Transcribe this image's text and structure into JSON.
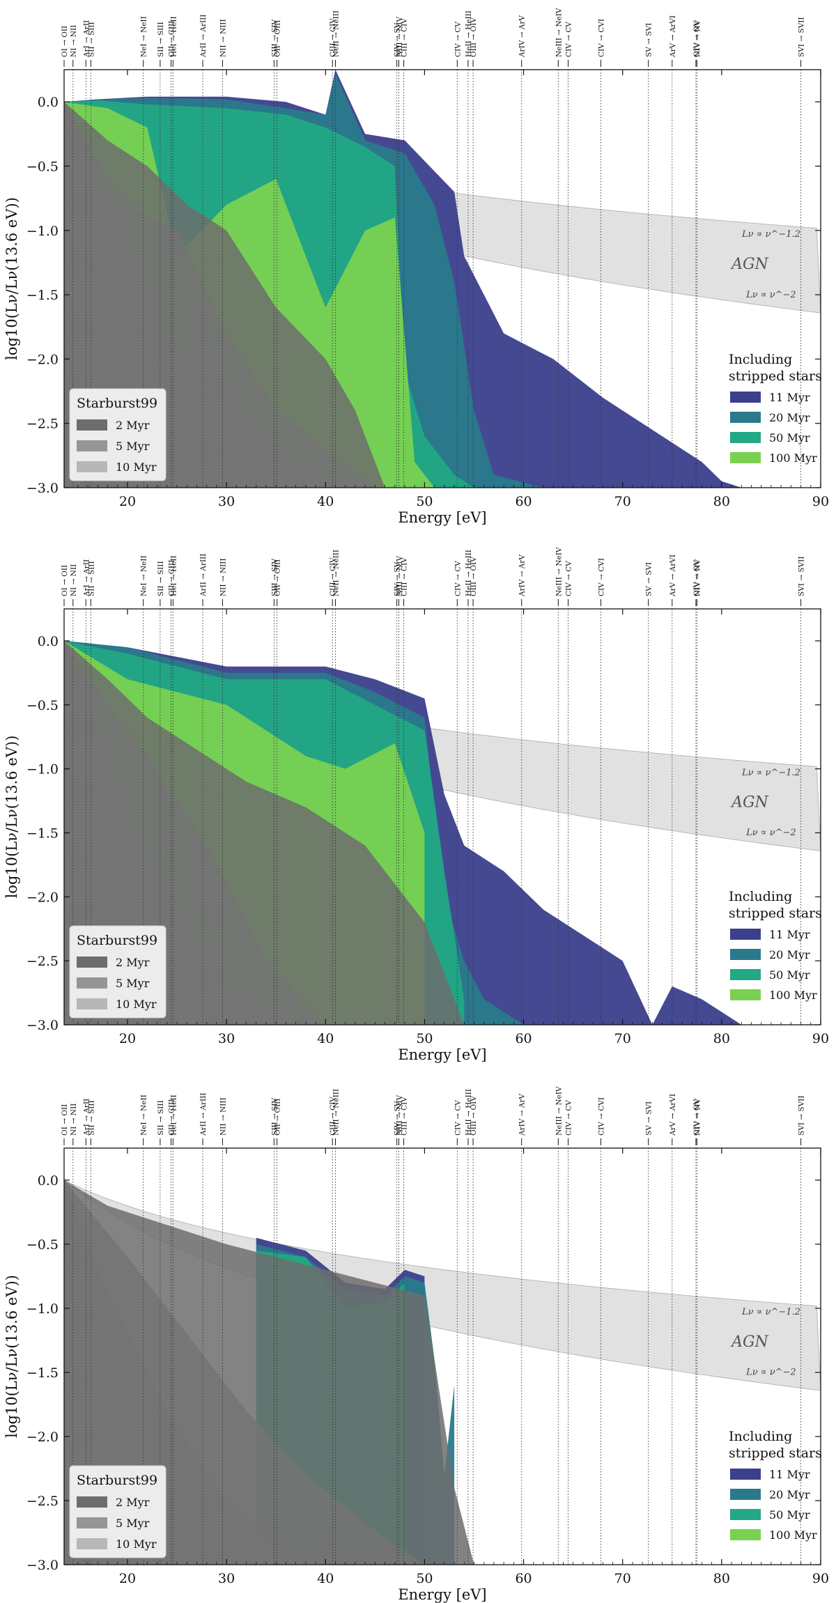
{
  "figure": {
    "xlabel": "Energy [eV]",
    "ylabel": "log10(Lν/Lν(13.6 eV))",
    "xticks": [
      "20",
      "30",
      "40",
      "50",
      "60",
      "70",
      "80",
      "90"
    ],
    "yticks": [
      "0.0",
      "−0.5",
      "−1.0",
      "−1.5",
      "−2.0",
      "−2.5",
      "−3.0"
    ],
    "agn_label": "AGN",
    "agn_law_upper": "Lν ∝ ν^−1.2",
    "agn_law_lower": "Lν ∝ ν^−2",
    "legend_starburst_title": "Starburst99",
    "legend_starburst": [
      "2 Myr",
      "5 Myr",
      "10 Myr"
    ],
    "legend_stripped_title_1": "Including",
    "legend_stripped_title_2": "stripped stars",
    "legend_stripped": [
      "11 Myr",
      "20 Myr",
      "50 Myr",
      "100 Myr"
    ]
  },
  "colors": {
    "sb_2": "#6d6d6d",
    "sb_5": "#959595",
    "sb_10": "#b7b7b7",
    "s_11": "#3b3f8c",
    "s_20": "#2a7a8c",
    "s_50": "#22a884",
    "s_100": "#7ad151",
    "agn": "#c8c8c8"
  },
  "ionization_lines": [
    {
      "label": "OI → OII",
      "energy": 13.6
    },
    {
      "label": "NI → NII",
      "energy": 14.5
    },
    {
      "label": "ArI → ArII",
      "energy": 15.8
    },
    {
      "label": "SII → SIII",
      "energy": 16.3
    },
    {
      "label": "NeI → NeII",
      "energy": 21.6
    },
    {
      "label": "SII → SIII",
      "energy": 23.3
    },
    {
      "label": "CII → CIII",
      "energy": 24.4
    },
    {
      "label": "HeI → HeII",
      "energy": 24.6
    },
    {
      "label": "ArII → ArIII",
      "energy": 27.6
    },
    {
      "label": "NII → NIII",
      "energy": 29.6
    },
    {
      "label": "SIII → SIV",
      "energy": 34.8
    },
    {
      "label": "OII → OIII",
      "energy": 35.1
    },
    {
      "label": "CIII → CIV",
      "energy": 40.7
    },
    {
      "label": "NeII → NeIII",
      "energy": 41.0
    },
    {
      "label": "SIV → SV",
      "energy": 47.2
    },
    {
      "label": "NIII → NIV",
      "energy": 47.4
    },
    {
      "label": "CIII → CIV",
      "energy": 47.9
    },
    {
      "label": "CIV → CV",
      "energy": 53.3
    },
    {
      "label": "HeII → HeIII",
      "energy": 54.4
    },
    {
      "label": "OIII → OIV",
      "energy": 54.9
    },
    {
      "label": "ArIV → ArV",
      "energy": 59.8
    },
    {
      "label": "NeIII → NeIV",
      "energy": 63.5
    },
    {
      "label": "CIV → CV",
      "energy": 64.5
    },
    {
      "label": "CIV → CVI",
      "energy": 67.8
    },
    {
      "label": "SV → SVI",
      "energy": 72.6
    },
    {
      "label": "ArV → ArVI",
      "energy": 75.0
    },
    {
      "label": "NIV → NV",
      "energy": 77.5
    },
    {
      "label": "OIV → OV",
      "energy": 77.4
    },
    {
      "label": "SVI → SVII",
      "energy": 88.0
    }
  ],
  "chart_data": [
    {
      "type": "area",
      "panel": 1,
      "xlim": [
        13.6,
        90
      ],
      "ylim": [
        -3.0,
        0.25
      ],
      "xlabel": "Energy [eV]",
      "ylabel": "log10(Lν/Lν(13.6 eV))",
      "agn": {
        "slope_upper": -1.2,
        "slope_lower": -2.0
      },
      "series": [
        {
          "name": "11 Myr",
          "color_key": "s_11",
          "x": [
            13.6,
            17,
            22,
            30,
            36,
            40,
            41,
            44,
            48,
            53,
            54,
            58,
            63,
            68,
            72,
            78,
            80,
            82
          ],
          "y": [
            0.0,
            0.02,
            0.04,
            0.04,
            0.0,
            -0.1,
            0.25,
            -0.25,
            -0.3,
            -0.7,
            -1.2,
            -1.8,
            -2.0,
            -2.3,
            -2.5,
            -2.8,
            -2.95,
            -3.0
          ]
        },
        {
          "name": "20 Myr",
          "color_key": "s_20",
          "x": [
            13.6,
            17,
            22,
            30,
            36,
            40,
            41,
            44,
            48,
            51,
            53,
            55,
            57,
            62
          ],
          "y": [
            0.0,
            0.02,
            0.03,
            0.02,
            -0.05,
            -0.1,
            0.22,
            -0.3,
            -0.4,
            -0.8,
            -1.4,
            -2.4,
            -2.9,
            -3.0
          ]
        },
        {
          "name": "50 Myr",
          "color_key": "s_50",
          "x": [
            13.6,
            17,
            22,
            30,
            36,
            40,
            44,
            47,
            48,
            50,
            53,
            55
          ],
          "y": [
            0.0,
            0.01,
            -0.02,
            -0.05,
            -0.1,
            -0.2,
            -0.35,
            -0.5,
            -2.1,
            -2.6,
            -2.9,
            -3.0
          ]
        },
        {
          "name": "100 Myr",
          "color_key": "s_100",
          "x": [
            13.6,
            18,
            22,
            25,
            30,
            35,
            40,
            44,
            47,
            49,
            51,
            52
          ],
          "y": [
            0.0,
            -0.05,
            -0.2,
            -1.2,
            -0.8,
            -0.6,
            -1.6,
            -1.0,
            -0.9,
            -2.8,
            -3.0,
            -3.0
          ]
        },
        {
          "name": "10 Myr",
          "color_key": "sb_10",
          "x": [
            13.6,
            20,
            24,
            30,
            35,
            40,
            45
          ],
          "y": [
            0.0,
            -1.2,
            -2.0,
            -2.3,
            -2.8,
            -3.0,
            -3.0
          ]
        },
        {
          "name": "5 Myr",
          "color_key": "sb_5",
          "x": [
            13.6,
            18,
            22,
            25,
            30,
            35,
            40,
            45,
            48
          ],
          "y": [
            0.0,
            -0.6,
            -0.9,
            -1.0,
            -1.8,
            -2.4,
            -2.7,
            -3.0,
            -3.0
          ]
        },
        {
          "name": "2 Myr",
          "color_key": "sb_2",
          "x": [
            13.6,
            18,
            22,
            26,
            30,
            35,
            40,
            43,
            46
          ],
          "y": [
            0.0,
            -0.3,
            -0.5,
            -0.8,
            -1.0,
            -1.6,
            -2.0,
            -2.4,
            -3.0
          ]
        }
      ]
    },
    {
      "type": "area",
      "panel": 2,
      "xlim": [
        13.6,
        90
      ],
      "ylim": [
        -3.0,
        0.25
      ],
      "xlabel": "Energy [eV]",
      "ylabel": "log10(Lν/Lν(13.6 eV))",
      "agn": {
        "slope_upper": -1.2,
        "slope_lower": -2.0
      },
      "series": [
        {
          "name": "11 Myr",
          "color_key": "s_11",
          "x": [
            13.6,
            20,
            30,
            40,
            45,
            50,
            52,
            54,
            58,
            62,
            66,
            70,
            73,
            75,
            78,
            80,
            82
          ],
          "y": [
            0.0,
            -0.05,
            -0.2,
            -0.2,
            -0.3,
            -0.45,
            -1.2,
            -1.6,
            -1.8,
            -2.1,
            -2.3,
            -2.5,
            -3.0,
            -2.7,
            -2.8,
            -2.9,
            -3.0
          ]
        },
        {
          "name": "20 Myr",
          "color_key": "s_20",
          "x": [
            13.6,
            20,
            30,
            40,
            45,
            50,
            52,
            54,
            56,
            60,
            62
          ],
          "y": [
            0.0,
            -0.05,
            -0.25,
            -0.25,
            -0.4,
            -0.6,
            -2.0,
            -2.5,
            -2.8,
            -3.0,
            -3.0
          ]
        },
        {
          "name": "50 Myr",
          "color_key": "s_50",
          "x": [
            13.6,
            20,
            30,
            40,
            45,
            50,
            52,
            54
          ],
          "y": [
            0.0,
            -0.1,
            -0.3,
            -0.3,
            -0.5,
            -0.7,
            -1.8,
            -2.8
          ]
        },
        {
          "name": "100 Myr",
          "color_key": "s_100",
          "x": [
            13.6,
            20,
            30,
            38,
            42,
            47,
            50
          ],
          "y": [
            0.0,
            -0.3,
            -0.5,
            -0.9,
            -1.0,
            -0.8,
            -1.5
          ]
        },
        {
          "name": "10 Myr",
          "color_key": "sb_10",
          "x": [
            13.6,
            20,
            26,
            30,
            36
          ],
          "y": [
            0.0,
            -1.5,
            -2.3,
            -2.8,
            -3.0
          ]
        },
        {
          "name": "5 Myr",
          "color_key": "sb_5",
          "x": [
            13.6,
            18,
            22,
            28,
            34,
            40
          ],
          "y": [
            0.0,
            -0.5,
            -0.9,
            -1.6,
            -2.5,
            -3.0
          ]
        },
        {
          "name": "2 Myr",
          "color_key": "sb_2",
          "x": [
            13.6,
            18,
            22,
            26,
            32,
            38,
            44,
            50,
            54
          ],
          "y": [
            0.0,
            -0.3,
            -0.6,
            -0.8,
            -1.1,
            -1.3,
            -1.6,
            -2.2,
            -3.0
          ]
        }
      ]
    },
    {
      "type": "area",
      "panel": 3,
      "xlim": [
        13.6,
        90
      ],
      "ylim": [
        -3.0,
        0.25
      ],
      "xlabel": "Energy [eV]",
      "ylabel": "log10(Lν/Lν(13.6 eV))",
      "agn": {
        "slope_upper": -1.2,
        "slope_lower": -2.0
      },
      "series": [
        {
          "name": "11 Myr",
          "color_key": "s_11",
          "x": [
            33,
            38,
            42,
            46,
            48,
            50
          ],
          "y": [
            -0.45,
            -0.55,
            -0.8,
            -0.85,
            -0.7,
            -0.75
          ]
        },
        {
          "name": "20 Myr",
          "color_key": "s_20",
          "x": [
            33,
            38,
            42,
            46,
            48,
            50,
            51,
            52,
            53
          ],
          "y": [
            -0.5,
            -0.6,
            -0.85,
            -0.9,
            -0.75,
            -0.8,
            -1.4,
            -2.3,
            -1.6
          ]
        },
        {
          "name": "50 Myr",
          "color_key": "s_50",
          "x": [
            33,
            38,
            42,
            46,
            48
          ],
          "y": [
            -0.55,
            -0.6,
            -1.0,
            -0.95,
            -0.8
          ]
        },
        {
          "name": "10 Myr",
          "color_key": "sb_10",
          "x": [
            13.6,
            18,
            24,
            30,
            35,
            40
          ],
          "y": [
            0.0,
            -0.9,
            -1.8,
            -2.5,
            -2.9,
            -3.0
          ]
        },
        {
          "name": "5 Myr",
          "color_key": "sb_5",
          "x": [
            13.6,
            20,
            26,
            32,
            38,
            46,
            50
          ],
          "y": [
            0.0,
            -0.6,
            -1.2,
            -1.8,
            -2.3,
            -2.8,
            -3.0
          ]
        },
        {
          "name": "2 Myr",
          "color_key": "sb_2",
          "x": [
            13.6,
            18,
            22,
            30,
            35,
            40,
            45,
            50,
            51,
            53,
            55
          ],
          "y": [
            0.0,
            -0.2,
            -0.3,
            -0.5,
            -0.6,
            -0.7,
            -0.8,
            -0.9,
            -1.4,
            -2.4,
            -3.0
          ]
        }
      ]
    }
  ]
}
